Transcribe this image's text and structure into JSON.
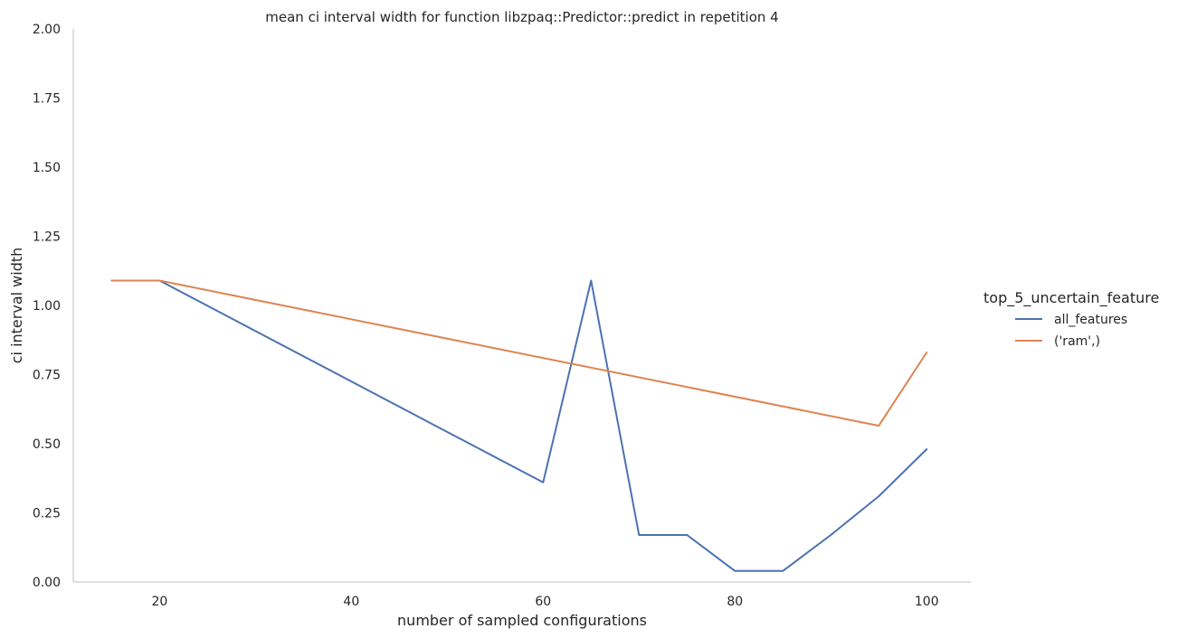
{
  "chart_data": {
    "type": "line",
    "title": "mean ci interval width for function libzpaq::Predictor::predict in repetition 4",
    "xlabel": "number of sampled configurations",
    "ylabel": "ci interval width",
    "xlim": [
      11,
      104.6
    ],
    "ylim": [
      0,
      2.0
    ],
    "xticks": [
      20,
      40,
      60,
      80,
      100
    ],
    "yticks": [
      0.0,
      0.25,
      0.5,
      0.75,
      1.0,
      1.25,
      1.5,
      1.75,
      2.0
    ],
    "ytick_labels": [
      "0.00",
      "0.25",
      "0.50",
      "0.75",
      "1.00",
      "1.25",
      "1.50",
      "1.75",
      "2.00"
    ],
    "grid": false,
    "legend": {
      "title": "top_5_uncertain_feature",
      "placement": "right"
    },
    "series": [
      {
        "name": "all_features",
        "color": "#4c72b0",
        "x": [
          15,
          20,
          60,
          65,
          70,
          75,
          80,
          85,
          90,
          95,
          100
        ],
        "y": [
          1.09,
          1.09,
          0.36,
          1.09,
          0.17,
          0.17,
          0.04,
          0.04,
          0.17,
          0.31,
          0.48
        ]
      },
      {
        "name": "('ram',)",
        "color": "#dd8452",
        "x": [
          15,
          20,
          95,
          100
        ],
        "y": [
          1.09,
          1.09,
          0.565,
          0.83
        ]
      }
    ]
  }
}
